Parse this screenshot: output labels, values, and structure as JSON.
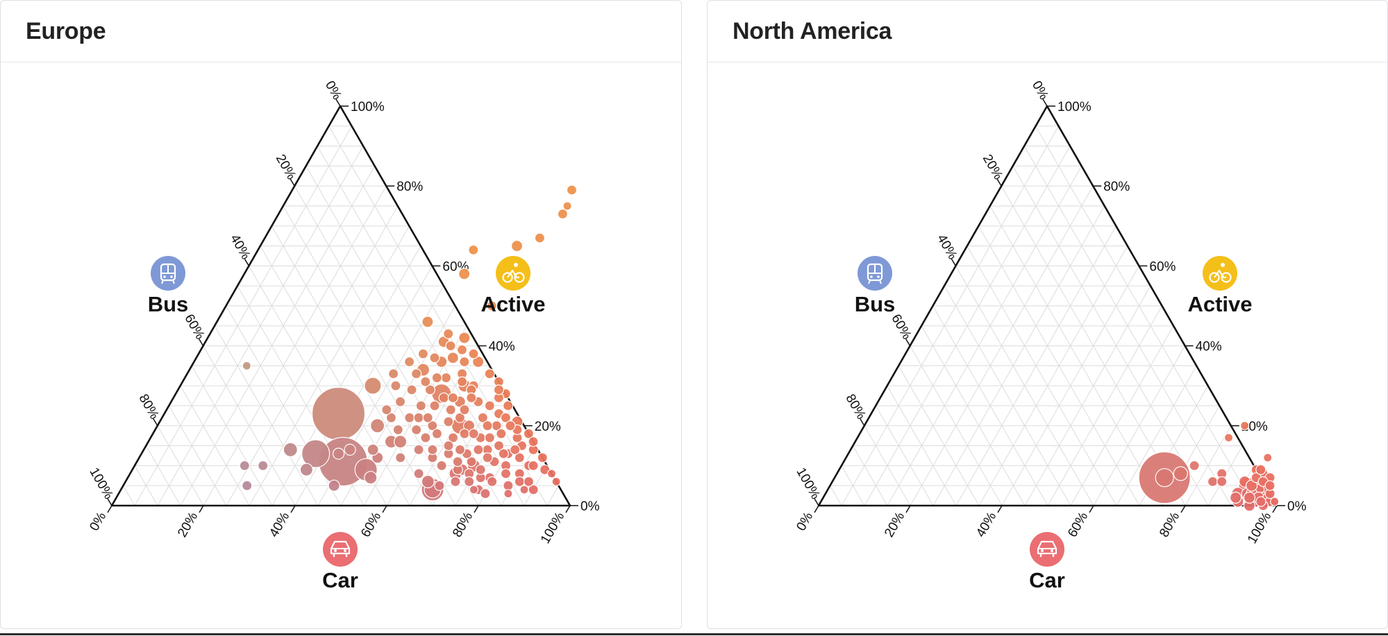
{
  "chart_data": [
    {
      "type": "scatter",
      "chart_subtype": "ternary bubble",
      "title": "Europe",
      "axes": {
        "bus": {
          "label": "Bus",
          "icon": "bus-icon",
          "color": "#7f99d6",
          "ticks": [
            "0%",
            "20%",
            "40%",
            "60%",
            "80%",
            "100%"
          ]
        },
        "active": {
          "label": "Active",
          "icon": "bicycle-icon",
          "color": "#f5bf1a",
          "ticks": [
            "0%",
            "20%",
            "40%",
            "60%",
            "80%",
            "100%"
          ]
        },
        "car": {
          "label": "Car",
          "icon": "car-icon",
          "color": "#ea6e72",
          "ticks": [
            "0%",
            "20%",
            "40%",
            "60%",
            "80%",
            "100%"
          ]
        }
      },
      "grid": true,
      "point_fields": [
        "car",
        "active",
        "bus",
        "size"
      ],
      "points": [
        [
          0.38,
          0.13,
          0.49,
          20
        ],
        [
          0.42,
          0.3,
          0.28,
          12
        ],
        [
          0.38,
          0.23,
          0.39,
          38
        ],
        [
          0.24,
          0.1,
          0.66,
          7
        ],
        [
          0.28,
          0.1,
          0.62,
          7
        ],
        [
          0.46,
          0.05,
          0.49,
          8
        ],
        [
          0.27,
          0.05,
          0.68,
          7
        ],
        [
          0.38,
          0.09,
          0.53,
          9
        ],
        [
          0.32,
          0.14,
          0.54,
          10
        ],
        [
          0.12,
          0.35,
          0.53,
          6
        ],
        [
          0.45,
          0.11,
          0.44,
          35
        ],
        [
          0.51,
          0.09,
          0.4,
          16
        ],
        [
          0.53,
          0.16,
          0.31,
          9
        ],
        [
          0.53,
          0.07,
          0.4,
          9
        ],
        [
          0.45,
          0.14,
          0.41,
          8
        ],
        [
          0.43,
          0.13,
          0.44,
          8
        ],
        [
          0.48,
          0.2,
          0.32,
          10
        ],
        [
          0.52,
          0.12,
          0.36,
          8
        ],
        [
          0.5,
          0.14,
          0.36,
          8
        ],
        [
          0.55,
          0.16,
          0.29,
          9
        ],
        [
          0.51,
          0.34,
          0.15,
          9
        ],
        [
          0.46,
          0.46,
          0.08,
          8
        ],
        [
          0.58,
          0.5,
          -0.08,
          7
        ],
        [
          0.48,
          0.58,
          -0.06,
          8
        ],
        [
          0.47,
          0.64,
          -0.11,
          7
        ],
        [
          0.56,
          0.65,
          -0.21,
          8
        ],
        [
          0.6,
          0.67,
          -0.27,
          7
        ],
        [
          0.62,
          0.73,
          -0.35,
          7
        ],
        [
          0.62,
          0.75,
          -0.37,
          6
        ],
        [
          0.61,
          0.79,
          -0.4,
          7
        ],
        [
          0.68,
          0.04,
          0.28,
          16
        ],
        [
          0.68,
          0.04,
          0.28,
          12
        ],
        [
          0.66,
          0.06,
          0.28,
          9
        ],
        [
          0.71,
          0.08,
          0.21,
          9
        ],
        [
          0.72,
          0.09,
          0.19,
          8
        ],
        [
          0.64,
          0.3,
          0.06,
          7
        ],
        [
          0.63,
          0.26,
          0.11,
          8
        ],
        [
          0.7,
          0.25,
          0.05,
          7
        ],
        [
          0.62,
          0.36,
          0.02,
          8
        ],
        [
          0.74,
          0.2,
          0.06,
          7
        ],
        [
          0.8,
          0.13,
          0.07,
          7
        ],
        [
          0.86,
          0.1,
          0.04,
          7
        ],
        [
          0.85,
          0.03,
          0.12,
          6
        ],
        [
          0.88,
          0.04,
          0.08,
          6
        ],
        [
          0.9,
          0.04,
          0.06,
          7
        ],
        [
          0.92,
          0.08,
          0.0,
          6
        ],
        [
          0.94,
          0.06,
          0.0,
          6
        ],
        [
          0.77,
          0.04,
          0.19,
          6
        ],
        [
          0.62,
          0.3,
          0.08,
          9
        ],
        [
          0.66,
          0.17,
          0.17,
          7
        ],
        [
          0.71,
          0.09,
          0.2,
          7
        ],
        [
          0.75,
          0.14,
          0.11,
          7
        ],
        [
          0.79,
          0.07,
          0.14,
          7
        ],
        [
          0.82,
          0.15,
          0.03,
          7
        ],
        [
          0.84,
          0.05,
          0.11,
          7
        ],
        [
          0.88,
          0.12,
          0.0,
          7
        ],
        [
          0.68,
          0.2,
          0.12,
          8
        ],
        [
          0.74,
          0.25,
          0.01,
          7
        ],
        [
          0.78,
          0.21,
          0.01,
          8
        ],
        [
          0.58,
          0.25,
          0.17,
          7
        ],
        [
          0.6,
          0.2,
          0.2,
          7
        ],
        [
          0.63,
          0.08,
          0.29,
          7
        ],
        [
          0.51,
          0.29,
          0.2,
          7
        ],
        [
          0.54,
          0.36,
          0.1,
          8
        ],
        [
          0.56,
          0.42,
          0.02,
          8
        ],
        [
          0.56,
          0.37,
          0.07,
          8
        ],
        [
          0.52,
          0.41,
          0.07,
          8
        ],
        [
          0.69,
          0.31,
          0.0,
          7
        ],
        [
          0.72,
          0.28,
          0.0,
          7
        ],
        [
          0.76,
          0.18,
          0.06,
          7
        ],
        [
          0.82,
          0.18,
          0.0,
          7
        ],
        [
          0.66,
          0.33,
          0.01,
          7
        ],
        [
          0.73,
          0.11,
          0.16,
          7
        ],
        [
          0.71,
          0.13,
          0.16,
          7
        ],
        [
          0.8,
          0.06,
          0.14,
          7
        ],
        [
          0.85,
          0.08,
          0.07,
          7
        ],
        [
          0.65,
          0.22,
          0.13,
          7
        ],
        [
          0.6,
          0.14,
          0.26,
          7
        ],
        [
          0.54,
          0.22,
          0.24,
          7
        ],
        [
          0.57,
          0.32,
          0.11,
          7
        ],
        [
          0.6,
          0.33,
          0.07,
          7
        ],
        [
          0.67,
          0.26,
          0.07,
          7
        ],
        [
          0.7,
          0.22,
          0.08,
          7
        ],
        [
          0.78,
          0.11,
          0.11,
          7
        ],
        [
          0.81,
          0.1,
          0.09,
          7
        ],
        [
          0.74,
          0.08,
          0.18,
          7
        ],
        [
          0.69,
          0.14,
          0.17,
          7
        ],
        [
          0.64,
          0.12,
          0.24,
          7
        ],
        [
          0.57,
          0.12,
          0.31,
          7
        ],
        [
          0.55,
          0.25,
          0.2,
          7
        ],
        [
          0.47,
          0.3,
          0.23,
          7
        ],
        [
          0.5,
          0.26,
          0.24,
          7
        ],
        [
          0.5,
          0.33,
          0.17,
          7
        ],
        [
          0.52,
          0.37,
          0.11,
          7
        ],
        [
          0.55,
          0.29,
          0.16,
          7
        ],
        [
          0.59,
          0.27,
          0.14,
          7
        ],
        [
          0.62,
          0.24,
          0.14,
          7
        ],
        [
          0.72,
          0.17,
          0.11,
          7
        ],
        [
          0.77,
          0.15,
          0.08,
          7
        ],
        [
          0.8,
          0.17,
          0.03,
          7
        ],
        [
          0.83,
          0.12,
          0.05,
          7
        ],
        [
          0.85,
          0.14,
          0.01,
          7
        ],
        [
          0.87,
          0.1,
          0.03,
          7
        ],
        [
          0.9,
          0.09,
          0.01,
          7
        ],
        [
          0.77,
          0.07,
          0.16,
          7
        ],
        [
          0.73,
          0.23,
          0.04,
          7
        ],
        [
          0.71,
          0.27,
          0.02,
          7
        ],
        [
          0.64,
          0.29,
          0.07,
          7
        ],
        [
          0.59,
          0.36,
          0.05,
          7
        ],
        [
          0.57,
          0.39,
          0.04,
          7
        ],
        [
          0.52,
          0.43,
          0.05,
          7
        ],
        [
          0.58,
          0.28,
          0.14,
          14
        ],
        [
          0.66,
          0.2,
          0.14,
          12
        ],
        [
          0.74,
          0.1,
          0.16,
          9
        ],
        [
          0.76,
          0.12,
          0.12,
          7
        ],
        [
          0.68,
          0.18,
          0.14,
          7
        ],
        [
          0.6,
          0.17,
          0.23,
          7
        ],
        [
          0.62,
          0.18,
          0.2,
          7
        ],
        [
          0.63,
          0.14,
          0.23,
          7
        ],
        [
          0.67,
          0.1,
          0.23,
          7
        ],
        [
          0.69,
          0.05,
          0.26,
          7
        ],
        [
          0.72,
          0.06,
          0.22,
          7
        ],
        [
          0.75,
          0.06,
          0.19,
          7
        ],
        [
          0.78,
          0.04,
          0.18,
          7
        ],
        [
          0.8,
          0.03,
          0.17,
          7
        ],
        [
          0.82,
          0.08,
          0.1,
          7
        ],
        [
          0.79,
          0.19,
          0.02,
          7
        ],
        [
          0.75,
          0.22,
          0.03,
          7
        ],
        [
          0.61,
          0.31,
          0.08,
          7
        ],
        [
          0.65,
          0.24,
          0.11,
          7
        ],
        [
          0.63,
          0.21,
          0.16,
          7
        ],
        [
          0.57,
          0.19,
          0.24,
          7
        ],
        [
          0.56,
          0.22,
          0.22,
          7
        ],
        [
          0.53,
          0.31,
          0.16,
          7
        ],
        [
          0.5,
          0.22,
          0.28,
          7
        ],
        [
          0.48,
          0.24,
          0.28,
          7
        ],
        [
          0.45,
          0.33,
          0.22,
          7
        ],
        [
          0.53,
          0.19,
          0.28,
          7
        ],
        [
          0.67,
          0.13,
          0.2,
          7
        ],
        [
          0.7,
          0.11,
          0.19,
          7
        ],
        [
          0.84,
          0.16,
          0.0,
          7
        ],
        [
          0.86,
          0.06,
          0.08,
          7
        ],
        [
          0.88,
          0.06,
          0.06,
          7
        ],
        [
          0.72,
          0.2,
          0.08,
          7
        ],
        [
          0.65,
          0.27,
          0.08,
          7
        ],
        [
          0.61,
          0.27,
          0.12,
          7
        ],
        [
          0.66,
          0.15,
          0.19,
          7
        ],
        [
          0.73,
          0.14,
          0.13,
          7
        ],
        [
          0.76,
          0.09,
          0.15,
          7
        ],
        [
          0.79,
          0.13,
          0.08,
          7
        ],
        [
          0.81,
          0.14,
          0.05,
          7
        ],
        [
          0.55,
          0.32,
          0.13,
          7
        ],
        [
          0.49,
          0.38,
          0.13,
          7
        ],
        [
          0.47,
          0.36,
          0.17,
          7
        ],
        [
          0.58,
          0.22,
          0.2,
          7
        ],
        [
          0.7,
          0.18,
          0.12,
          7
        ],
        [
          0.74,
          0.17,
          0.09,
          7
        ],
        [
          0.77,
          0.2,
          0.03,
          7
        ],
        [
          0.7,
          0.29,
          0.01,
          7
        ],
        [
          0.54,
          0.4,
          0.06,
          7
        ],
        [
          0.6,
          0.38,
          0.02,
          7
        ]
      ]
    },
    {
      "type": "scatter",
      "chart_subtype": "ternary bubble",
      "title": "North America",
      "axes": {
        "bus": {
          "label": "Bus",
          "icon": "bus-icon",
          "color": "#7f99d6",
          "ticks": [
            "0%",
            "20%",
            "40%",
            "60%",
            "80%",
            "100%"
          ]
        },
        "active": {
          "label": "Active",
          "icon": "bicycle-icon",
          "color": "#f5bf1a",
          "ticks": [
            "0%",
            "20%",
            "40%",
            "60%",
            "80%",
            "100%"
          ]
        },
        "car": {
          "label": "Car",
          "icon": "car-icon",
          "color": "#ea6e72",
          "ticks": [
            "0%",
            "20%",
            "40%",
            "60%",
            "80%",
            "100%"
          ]
        }
      },
      "grid": true,
      "point_fields": [
        "car",
        "active",
        "bus",
        "size"
      ],
      "points": [
        [
          0.72,
          0.07,
          0.21,
          37
        ],
        [
          0.72,
          0.07,
          0.21,
          13
        ],
        [
          0.75,
          0.08,
          0.17,
          10
        ],
        [
          0.77,
          0.1,
          0.13,
          7
        ],
        [
          0.81,
          0.17,
          0.02,
          6
        ],
        [
          0.83,
          0.2,
          -0.03,
          6
        ],
        [
          0.83,
          0.06,
          0.11,
          7
        ],
        [
          0.84,
          0.08,
          0.08,
          7
        ],
        [
          0.85,
          0.06,
          0.09,
          7
        ],
        [
          0.91,
          0.05,
          0.04,
          12
        ],
        [
          0.9,
          0.03,
          0.07,
          9
        ],
        [
          0.94,
          0.06,
          0.0,
          8
        ],
        [
          0.97,
          0.02,
          0.01,
          7
        ],
        [
          0.96,
          0.03,
          0.01,
          8
        ],
        [
          0.95,
          0.05,
          0.0,
          8
        ],
        [
          0.93,
          0.08,
          -0.01,
          7
        ],
        [
          0.94,
          0.02,
          0.04,
          9
        ],
        [
          0.95,
          0.03,
          0.02,
          8
        ],
        [
          0.96,
          0.04,
          0.0,
          8
        ],
        [
          0.92,
          0.03,
          0.05,
          8
        ],
        [
          0.95,
          0.01,
          0.04,
          8
        ],
        [
          0.98,
          0.01,
          0.01,
          7
        ],
        [
          0.97,
          0.0,
          0.03,
          7
        ],
        [
          0.93,
          0.05,
          0.02,
          8
        ],
        [
          0.94,
          0.04,
          0.02,
          8
        ],
        [
          0.93,
          0.03,
          0.04,
          8
        ],
        [
          0.95,
          0.07,
          -0.02,
          7
        ],
        [
          0.91,
          0.09,
          0.0,
          7
        ],
        [
          0.92,
          0.12,
          -0.04,
          6
        ],
        [
          0.92,
          0.07,
          0.01,
          7
        ],
        [
          0.94,
          0.0,
          0.06,
          8
        ],
        [
          0.96,
          0.02,
          0.02,
          8
        ],
        [
          0.99,
          0.01,
          0.0,
          6
        ],
        [
          0.9,
          0.06,
          0.04,
          8
        ],
        [
          0.92,
          0.05,
          0.03,
          8
        ],
        [
          0.97,
          0.03,
          0.0,
          7
        ],
        [
          0.96,
          0.01,
          0.03,
          7
        ],
        [
          0.95,
          0.02,
          0.03,
          8
        ],
        [
          0.93,
          0.02,
          0.05,
          8
        ],
        [
          0.94,
          0.06,
          0.0,
          7
        ],
        [
          0.92,
          0.09,
          -0.01,
          7
        ],
        [
          0.91,
          0.01,
          0.08,
          8
        ],
        [
          0.96,
          0.05,
          -0.01,
          7
        ],
        [
          0.9,
          0.02,
          0.08,
          8
        ]
      ]
    }
  ]
}
